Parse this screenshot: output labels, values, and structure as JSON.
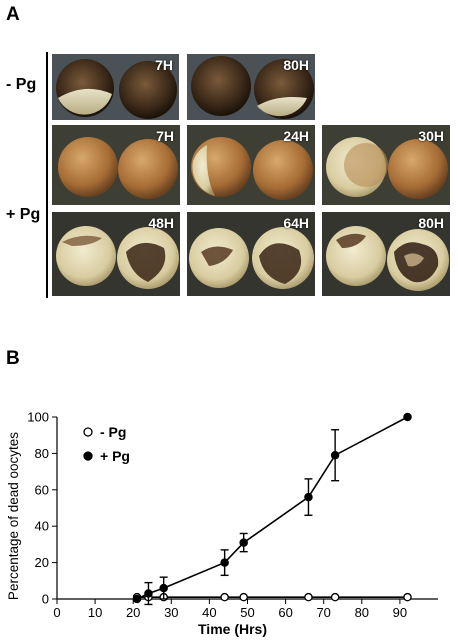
{
  "panels": {
    "a_label": "A",
    "b_label": "B"
  },
  "panel_a": {
    "minus_pg_label": "- Pg",
    "plus_pg_label": "+ Pg",
    "minus_pg_tiles": [
      {
        "time": "7H",
        "style": "dark-bright"
      },
      {
        "time": "80H",
        "style": "dark"
      }
    ],
    "plus_pg_tiles": [
      {
        "time": "7H",
        "style": "brown"
      },
      {
        "time": "24H",
        "style": "brown-pale"
      },
      {
        "time": "30H",
        "style": "pale-brown"
      },
      {
        "time": "48H",
        "style": "pale-damaged"
      },
      {
        "time": "64H",
        "style": "pale-damaged"
      },
      {
        "time": "80H",
        "style": "pale-damaged"
      }
    ]
  },
  "chart_data": {
    "type": "line",
    "title": "",
    "xlabel": "Time (Hrs)",
    "ylabel": "Percentage of dead oocytes",
    "xlim": [
      0,
      100
    ],
    "ylim": [
      0,
      100
    ],
    "xticks": [
      0,
      10,
      20,
      30,
      40,
      50,
      60,
      70,
      80,
      90
    ],
    "yticks": [
      0,
      20,
      40,
      60,
      80,
      100
    ],
    "grid": false,
    "legend": "top-left",
    "series": [
      {
        "name": "- Pg",
        "marker": "open-circle",
        "color": "#000000",
        "x": [
          21,
          24,
          28,
          44,
          49,
          66,
          73,
          92
        ],
        "y": [
          1,
          1,
          1,
          1,
          1,
          1,
          1,
          1
        ],
        "err": [
          0,
          0,
          0,
          0,
          0,
          0,
          0,
          0
        ]
      },
      {
        "name": "+ Pg",
        "marker": "filled-circle",
        "color": "#000000",
        "x": [
          21,
          24,
          28,
          44,
          49,
          66,
          73,
          92
        ],
        "y": [
          0,
          3,
          6,
          20,
          31,
          56,
          79,
          100
        ],
        "err": [
          0,
          6,
          6,
          7,
          5,
          10,
          14,
          0
        ]
      }
    ]
  }
}
